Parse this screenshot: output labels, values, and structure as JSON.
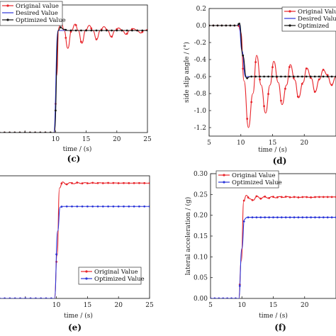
{
  "chart_data": [
    {
      "type": "line",
      "panel_label": "(c)",
      "xlabel": "time / (s)",
      "ylabel": "",
      "xlim": [
        0,
        25
      ],
      "xticks": [
        10,
        15,
        20,
        25
      ],
      "x_unlabeled_ticks": [
        5
      ],
      "ylim": [
        0,
        1
      ],
      "yticks": [],
      "legend": "top-left",
      "series": [
        {
          "name": "Original value",
          "color": "#e8242a",
          "marker": "dot",
          "points": [
            [
              0,
              0.0
            ],
            [
              9.8,
              0.0
            ],
            [
              10.2,
              0.45
            ],
            [
              10.5,
              0.82
            ],
            [
              10.9,
              0.87
            ],
            [
              11.4,
              0.8
            ],
            [
              12.0,
              0.66
            ],
            [
              12.6,
              0.8
            ],
            [
              13.2,
              0.85
            ],
            [
              13.7,
              0.8
            ],
            [
              14.3,
              0.7
            ],
            [
              14.9,
              0.8
            ],
            [
              15.5,
              0.84
            ],
            [
              16.1,
              0.8
            ],
            [
              16.7,
              0.73
            ],
            [
              17.3,
              0.8
            ],
            [
              17.9,
              0.83
            ],
            [
              18.5,
              0.8
            ],
            [
              19.1,
              0.75
            ],
            [
              19.7,
              0.8
            ],
            [
              20.3,
              0.82
            ],
            [
              20.9,
              0.8
            ],
            [
              21.5,
              0.77
            ],
            [
              22.1,
              0.8
            ],
            [
              22.7,
              0.815
            ],
            [
              23.3,
              0.8
            ],
            [
              23.9,
              0.78
            ],
            [
              24.5,
              0.8
            ],
            [
              25,
              0.805
            ]
          ]
        },
        {
          "name": "Desired Value",
          "color": "#2b36d9",
          "marker": "none",
          "points": [
            [
              0,
              0.0
            ],
            [
              9.7,
              0.0
            ],
            [
              10.4,
              0.8
            ],
            [
              25,
              0.8
            ]
          ]
        },
        {
          "name": "Optimized Value",
          "color": "#111111",
          "marker": "dot",
          "points": [
            [
              0,
              0.0
            ],
            [
              9.8,
              0.0
            ],
            [
              10.45,
              0.8
            ],
            [
              10.8,
              0.825
            ],
            [
              11.3,
              0.81
            ],
            [
              12,
              0.8
            ],
            [
              25,
              0.8
            ]
          ]
        }
      ]
    },
    {
      "type": "line",
      "panel_label": "(d)",
      "xlabel": "time / (s)",
      "ylabel": "side slip angle / (°)",
      "xlim": [
        5,
        25
      ],
      "xticks": [
        5,
        10,
        15,
        20
      ],
      "ylim": [
        -1.3,
        0.2
      ],
      "yticks": [
        "0.2",
        "0.0",
        "-0.2",
        "-0.4",
        "-0.6",
        "-0.8",
        "-1.0",
        "-1.2"
      ],
      "legend": "top-right",
      "series": [
        {
          "name": "Original Value",
          "color": "#e8242a",
          "marker": "dot",
          "points": [
            [
              5,
              0.0
            ],
            [
              9.6,
              0.0
            ],
            [
              10.0,
              -0.08
            ],
            [
              10.5,
              -0.65
            ],
            [
              11.2,
              -1.2
            ],
            [
              11.9,
              -0.8
            ],
            [
              12.5,
              -0.35
            ],
            [
              13.2,
              -0.7
            ],
            [
              13.9,
              -1.03
            ],
            [
              14.6,
              -0.7
            ],
            [
              15.2,
              -0.42
            ],
            [
              15.9,
              -0.67
            ],
            [
              16.5,
              -0.93
            ],
            [
              17.2,
              -0.7
            ],
            [
              17.8,
              -0.46
            ],
            [
              18.5,
              -0.64
            ],
            [
              19.1,
              -0.85
            ],
            [
              19.8,
              -0.67
            ],
            [
              20.4,
              -0.5
            ],
            [
              21.1,
              -0.62
            ],
            [
              21.7,
              -0.78
            ],
            [
              22.4,
              -0.63
            ],
            [
              23.0,
              -0.52
            ],
            [
              23.6,
              -0.58
            ],
            [
              24.3,
              -0.7
            ],
            [
              25,
              -0.6
            ]
          ]
        },
        {
          "name": "Desired Value",
          "color": "#2b36d9",
          "marker": "none",
          "points": [
            [
              5,
              0.0
            ],
            [
              9.4,
              0.0
            ],
            [
              9.7,
              0.02
            ],
            [
              10.2,
              -0.3
            ],
            [
              10.7,
              -0.6
            ],
            [
              25,
              -0.6
            ]
          ]
        },
        {
          "name": "Optimized",
          "color": "#111111",
          "marker": "dot",
          "points": [
            [
              5,
              0.0
            ],
            [
              9.5,
              0.0
            ],
            [
              9.8,
              0.03
            ],
            [
              10.3,
              -0.35
            ],
            [
              10.9,
              -0.62
            ],
            [
              11.5,
              -0.6
            ],
            [
              25,
              -0.6
            ]
          ]
        }
      ]
    },
    {
      "type": "line",
      "panel_label": "(e)",
      "xlabel": "time / (s)",
      "ylabel": "",
      "xlim": [
        0,
        25
      ],
      "xticks": [
        10,
        15,
        20,
        25
      ],
      "x_unlabeled_ticks": [
        5
      ],
      "ylim": [
        0,
        1
      ],
      "yticks": [],
      "legend": "bottom-right",
      "series": [
        {
          "name": "Original Value",
          "color": "#e8242a",
          "marker": "dot",
          "points": [
            [
              0,
              0.0
            ],
            [
              9.7,
              0.0
            ],
            [
              10.1,
              0.35
            ],
            [
              10.5,
              0.9
            ],
            [
              11.0,
              0.95
            ],
            [
              11.6,
              0.93
            ],
            [
              12.2,
              0.945
            ],
            [
              12.8,
              0.935
            ],
            [
              13.4,
              0.945
            ],
            [
              14.0,
              0.937
            ],
            [
              14.6,
              0.944
            ],
            [
              15.2,
              0.938
            ],
            [
              15.8,
              0.943
            ],
            [
              16.4,
              0.939
            ],
            [
              17.0,
              0.943
            ],
            [
              17.6,
              0.94
            ],
            [
              18.2,
              0.942
            ],
            [
              18.8,
              0.94
            ],
            [
              19.4,
              0.942
            ],
            [
              20.0,
              0.94
            ],
            [
              21.0,
              0.941
            ],
            [
              22.0,
              0.94
            ],
            [
              23.0,
              0.941
            ],
            [
              25,
              0.94
            ]
          ]
        },
        {
          "name": "Optimized Value",
          "color": "#2b36d9",
          "marker": "dot",
          "points": [
            [
              0,
              0.0
            ],
            [
              9.7,
              0.0
            ],
            [
              10.2,
              0.55
            ],
            [
              10.6,
              0.745
            ],
            [
              11.0,
              0.75
            ],
            [
              25,
              0.75
            ]
          ]
        }
      ]
    },
    {
      "type": "line",
      "panel_label": "(f)",
      "xlabel": "time / (s)",
      "ylabel": "lateral acceleration / (g)",
      "xlim": [
        5,
        25
      ],
      "xticks": [
        5,
        10,
        15,
        20
      ],
      "ylim": [
        0,
        0.3
      ],
      "yticks": [
        "0.30",
        "0.25",
        "0.20",
        "0.15",
        "0.10",
        "0.05",
        "0.00"
      ],
      "legend": "top-left",
      "series": [
        {
          "name": "Original Value",
          "color": "#e8242a",
          "marker": "dot",
          "points": [
            [
              5,
              0.0
            ],
            [
              9.5,
              0.0
            ],
            [
              9.9,
              0.09
            ],
            [
              10.3,
              0.235
            ],
            [
              10.7,
              0.248
            ],
            [
              11.2,
              0.24
            ],
            [
              11.8,
              0.236
            ],
            [
              12.4,
              0.246
            ],
            [
              13.0,
              0.24
            ],
            [
              13.6,
              0.245
            ],
            [
              14.2,
              0.241
            ],
            [
              14.8,
              0.245
            ],
            [
              15.4,
              0.242
            ],
            [
              16.0,
              0.245
            ],
            [
              16.6,
              0.243
            ],
            [
              17.2,
              0.245
            ],
            [
              17.8,
              0.243
            ],
            [
              18.4,
              0.244
            ],
            [
              19.0,
              0.243
            ],
            [
              20.0,
              0.244
            ],
            [
              21.0,
              0.243
            ],
            [
              22.0,
              0.244
            ],
            [
              25,
              0.244
            ]
          ]
        },
        {
          "name": "Optimized Value",
          "color": "#2b36d9",
          "marker": "dot",
          "points": [
            [
              5,
              0.0
            ],
            [
              9.5,
              0.0
            ],
            [
              10.0,
              0.12
            ],
            [
              10.4,
              0.19
            ],
            [
              10.8,
              0.195
            ],
            [
              25,
              0.195
            ]
          ]
        }
      ]
    }
  ]
}
